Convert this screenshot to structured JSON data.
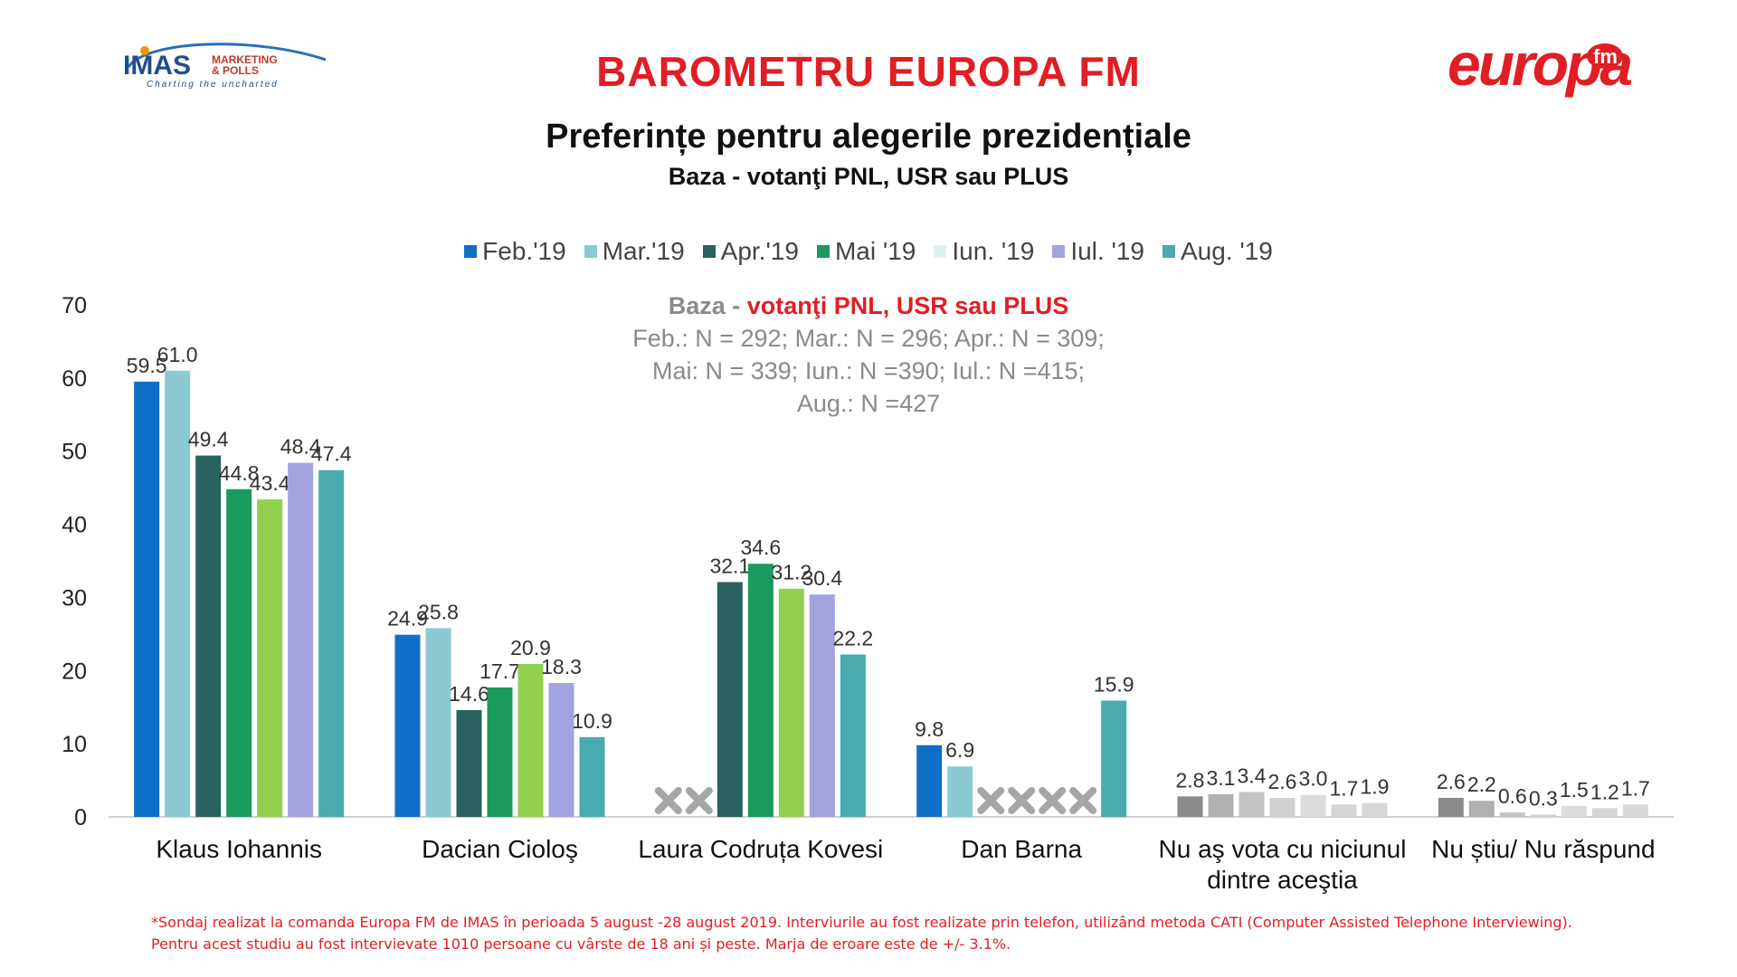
{
  "header": {
    "title": "BAROMETRU EUROPA FM",
    "subtitle": "Preferințe pentru alegerile prezidențiale",
    "base": "Baza - votanţi PNL, USR sau PLUS"
  },
  "logos": {
    "imas_main": "IMAS",
    "imas_side_1": "MARKETING",
    "imas_side_2": "& POLLS",
    "imas_tagline": "Charting the uncharted",
    "europa_word": "europa",
    "europa_fm": "fm"
  },
  "note": {
    "label_prefix": "Baza - ",
    "label_red": "votanţi PNL, USR sau PLUS",
    "line1": "Feb.: N = 292; Mar.: N = 296; Apr.: N = 309;",
    "line2": "Mai: N = 339; Iun.: N =390; Iul.: N =415;",
    "line3": "Aug.: N =427"
  },
  "footnote": {
    "line1": "*Sondaj realizat la comanda Europa FM de IMAS în perioada 5 august -28 august 2019. Interviurile au fost realizate prin telefon, utilizând metoda CATI (Computer Assisted Telephone Interviewing).",
    "line2": "Pentru acest studiu au fost intervievate 1010 persoane cu vârste de 18 ani și peste. Marja de eroare este de +/- 3.1%."
  },
  "chart_data": {
    "type": "bar",
    "categories": [
      "Klaus Iohannis",
      "Dacian Cioloş",
      "Laura Codruța Kovesi",
      "Dan Barna",
      "Nu aş vota cu niciunul dintre aceştia",
      "Nu știu/ Nu răspund"
    ],
    "category_lines": [
      [
        "Klaus Iohannis"
      ],
      [
        "Dacian Cioloş"
      ],
      [
        "Laura Codruța Kovesi"
      ],
      [
        "Dan Barna"
      ],
      [
        "Nu aş vota cu niciunul",
        "dintre aceştia"
      ],
      [
        "Nu știu/ Nu răspund"
      ]
    ],
    "ylim": [
      0,
      70
    ],
    "yticks": [
      0,
      10,
      20,
      30,
      40,
      50,
      60,
      70
    ],
    "legend_position": "top",
    "grid": false,
    "series": [
      {
        "name": "Feb.'19",
        "color": "#0f6fc6",
        "values": [
          59.5,
          24.9,
          null,
          9.8,
          2.8,
          2.6
        ]
      },
      {
        "name": "Mar.'19",
        "color": "#8ccad2",
        "values": [
          61.0,
          25.8,
          null,
          6.9,
          3.1,
          2.2
        ]
      },
      {
        "name": "Apr.'19",
        "color": "#2a6260",
        "values": [
          49.4,
          14.6,
          32.1,
          null,
          3.4,
          0.6
        ]
      },
      {
        "name": "Mai '19",
        "color": "#1a9a5c",
        "values": [
          44.8,
          17.7,
          34.6,
          null,
          2.6,
          0.3
        ]
      },
      {
        "name": "Iun. '19",
        "color": "#92d050",
        "values": [
          43.4,
          20.9,
          31.2,
          null,
          3.0,
          1.5
        ]
      },
      {
        "name": "Iul. '19",
        "color": "#a3a3e0",
        "values": [
          48.4,
          18.3,
          30.4,
          null,
          1.7,
          1.2
        ]
      },
      {
        "name": "Aug. '19",
        "color": "#47abb0",
        "values": [
          47.4,
          10.9,
          22.2,
          15.9,
          1.9,
          1.7
        ]
      }
    ],
    "legend_swatch_colors": [
      "#0f6fc6",
      "#8ccad2",
      "#2a6260",
      "#1a9a5c",
      "#dff0f0",
      "#a3a3e0",
      "#47abb0"
    ],
    "neutral_colors": [
      "#8a8a8a",
      "#b0b0b0",
      "#c4c4c4",
      "#d0d0d0",
      "#dcdcdc",
      "#d6d6d6",
      "#d8d8d8"
    ],
    "neutral_categories": [
      4,
      5
    ]
  }
}
